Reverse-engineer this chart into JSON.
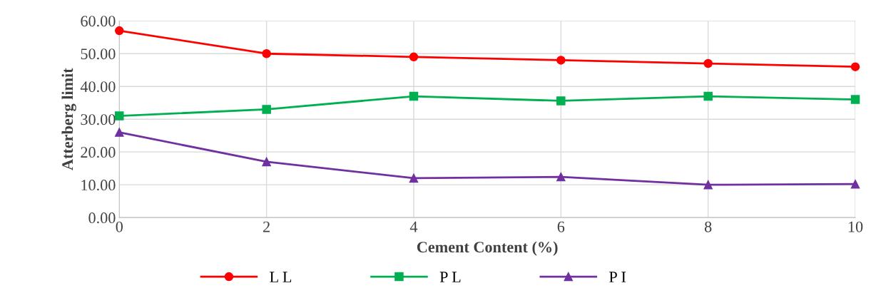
{
  "chart_data": {
    "type": "line",
    "xlabel": "Cement Content (%)",
    "ylabel": "Atterberg limit",
    "x": [
      0,
      2,
      4,
      6,
      8,
      10
    ],
    "series": [
      {
        "name": "L L",
        "color": "#ff0000",
        "marker": "circle",
        "values": [
          57,
          50,
          49,
          48,
          47,
          46
        ]
      },
      {
        "name": "P L",
        "color": "#00b050",
        "marker": "square",
        "values": [
          31,
          33,
          37,
          35.6,
          37,
          36
        ]
      },
      {
        "name": "P I",
        "color": "#7030a0",
        "marker": "triangle",
        "values": [
          26,
          17,
          12,
          12.4,
          10,
          10.2
        ]
      }
    ],
    "xlim": [
      0,
      10
    ],
    "xticks": [
      0,
      2,
      4,
      6,
      8,
      10
    ],
    "ylim": [
      0,
      60
    ],
    "yticks": [
      {
        "value": 0,
        "label": "0.00"
      },
      {
        "value": 10,
        "label": "10.00"
      },
      {
        "value": 20,
        "label": "20.00"
      },
      {
        "value": 30,
        "label": "30.00"
      },
      {
        "value": 40,
        "label": "40.00"
      },
      {
        "value": 50,
        "label": "50.00"
      },
      {
        "value": 60,
        "label": "60.00"
      }
    ],
    "grid": true,
    "legend": "bottom",
    "line_style": "solid"
  }
}
